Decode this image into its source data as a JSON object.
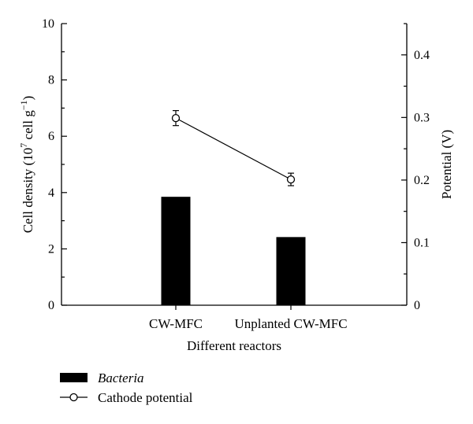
{
  "chart_data": {
    "type": "bar+line",
    "categories": [
      "CW-MFC",
      "Unplanted CW-MFC"
    ],
    "xlabel": "Different reactors",
    "ylabel_left": {
      "prefix": "Cell density (10",
      "sup1": "7",
      "mid": " cell g",
      "sup2": "−1",
      "suffix": ")"
    },
    "ylabel_right": "Potential (V)",
    "ylim_left": [
      0,
      10
    ],
    "yticks_left": [
      "0",
      "2",
      "4",
      "6",
      "8",
      "10"
    ],
    "ylim_right": [
      0,
      0.45
    ],
    "yticks_right": [
      "0",
      "0.1",
      "0.2",
      "0.3",
      "0.4"
    ],
    "series": [
      {
        "name": "Bacteria",
        "kind": "bar",
        "axis": "left",
        "values": [
          3.85,
          2.42
        ],
        "color": "#000000"
      },
      {
        "name": "Cathode potential",
        "kind": "line",
        "axis": "right",
        "values": [
          0.299,
          0.201
        ],
        "errors": [
          0.012,
          0.01
        ],
        "marker": "open-circle"
      }
    ],
    "legend_placement": "bottom-left",
    "grid": false
  }
}
